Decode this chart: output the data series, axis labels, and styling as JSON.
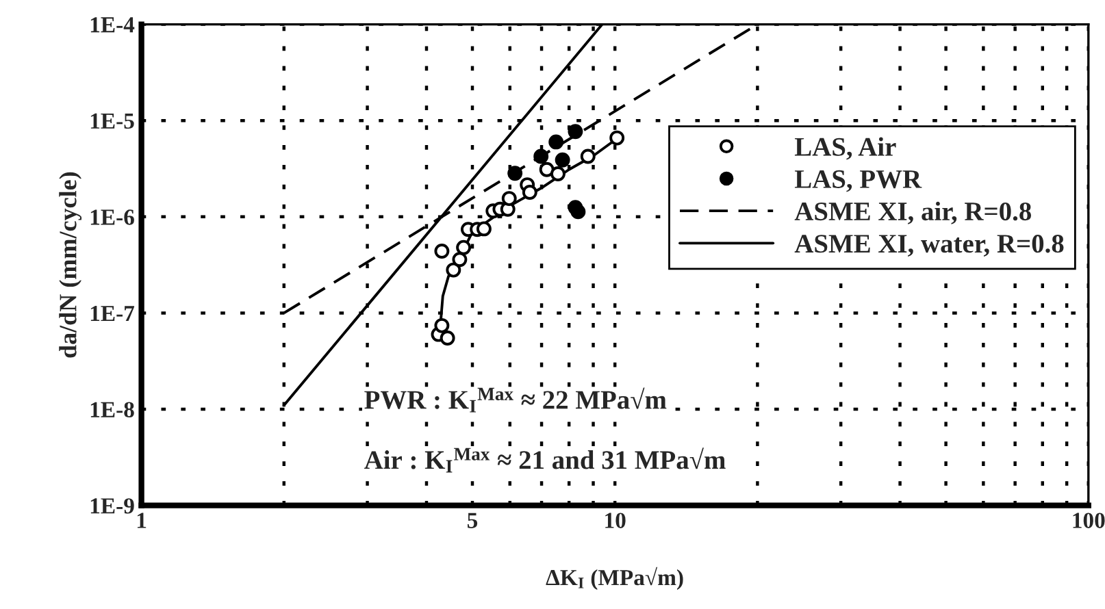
{
  "chart_data": {
    "type": "scatter",
    "xlabel": "ΔK$_{I}$ (MPa√m)",
    "ylabel": "da/dN (mm/cycle)",
    "log": "xy",
    "xlim": [
      1,
      100
    ],
    "xticks": [
      1,
      {
        "value": 2,
        "label": null
      },
      {
        "value": 3,
        "label": null
      },
      {
        "value": 4,
        "label": null
      },
      5,
      {
        "value": 6,
        "label": null
      },
      {
        "value": 7,
        "label": null
      },
      {
        "value": 8,
        "label": null
      },
      {
        "value": 9,
        "label": null
      },
      10,
      {
        "value": 20,
        "label": null
      },
      {
        "value": 30,
        "label": null
      },
      {
        "value": 40,
        "label": null
      },
      {
        "value": 50,
        "label": null
      },
      {
        "value": 60,
        "label": null
      },
      {
        "value": 70,
        "label": null
      },
      {
        "value": 80,
        "label": null
      },
      {
        "value": 90,
        "label": null
      },
      100
    ],
    "ylim": [
      1e-09,
      0.0001
    ],
    "yticks": [
      {
        "value": 1e-09,
        "label": "1E-9"
      },
      {
        "value": 1e-08,
        "label": "1E-8"
      },
      {
        "value": 1e-07,
        "label": "1E-7"
      },
      {
        "value": 1e-06,
        "label": "1E-6"
      },
      {
        "value": 1e-05,
        "label": "1E-5"
      },
      {
        "value": 0.0001,
        "label": "1E-4"
      }
    ],
    "grid": true,
    "legend": "right",
    "series": [
      {
        "name": "LAS, Air",
        "marker": "circle",
        "color": "#ffffff",
        "x": [
          4.24,
          4.31,
          4.43,
          4.31,
          4.56,
          4.7,
          4.79,
          4.9,
          5.12,
          5.29,
          5.53,
          5.72,
          5.94,
          5.98,
          6.53,
          6.61,
          7.18,
          7.58,
          8.77,
          10.1
        ],
        "values": [
          6e-08,
          7.4e-08,
          5.5e-08,
          4.4e-07,
          2.8e-07,
          3.6e-07,
          4.8e-07,
          7.4e-07,
          7.4e-07,
          7.5e-07,
          1.15e-06,
          1.2e-06,
          1.2e-06,
          1.55e-06,
          2.15e-06,
          1.8e-06,
          3.1e-06,
          2.8e-06,
          4.25e-06,
          6.6e-06
        ]
      },
      {
        "name": "LAS, PWR",
        "marker": "circle",
        "color": "#000000",
        "x": [
          6.15,
          6.98,
          7.51,
          7.75,
          8.25,
          8.25,
          8.36
        ],
        "values": [
          2.83e-06,
          4.25e-06,
          6e-06,
          3.9e-06,
          7.7e-06,
          1.25e-06,
          1.13e-06
        ]
      },
      {
        "name": "ASME XI, air, R=0.8",
        "type": "line",
        "line_style": "dashed",
        "color": "#000000",
        "x": [
          2,
          20
        ],
        "values": [
          1e-07,
          0.0001
        ]
      },
      {
        "name": "ASME XI, water, R=0.8",
        "type": "line",
        "line_style": "solid",
        "color": "#000000",
        "x": [
          2,
          9.4
        ],
        "values": [
          1.1e-08,
          0.0001
        ]
      },
      {
        "type": "line",
        "line_style": "solid",
        "color": "#000000",
        "x": [
          4.27,
          4.33,
          4.45,
          4.6,
          4.8,
          5.0,
          5.3,
          6.0,
          7.0,
          8.0,
          9.0,
          10.1
        ],
        "values": [
          6.5e-08,
          1.5e-07,
          2.4e-07,
          3e-07,
          4.6e-07,
          7e-07,
          8.5e-07,
          1.3e-06,
          2e-06,
          3.1e-06,
          4.3e-06,
          6.5e-06
        ]
      }
    ],
    "annotations": [
      "PWR : K$_{I}$$^{Max}$ ≈ 22 MPa√m",
      "Air : K$_{I}$$^{Max}$ ≈ 21 and 31 MPa√m"
    ]
  }
}
